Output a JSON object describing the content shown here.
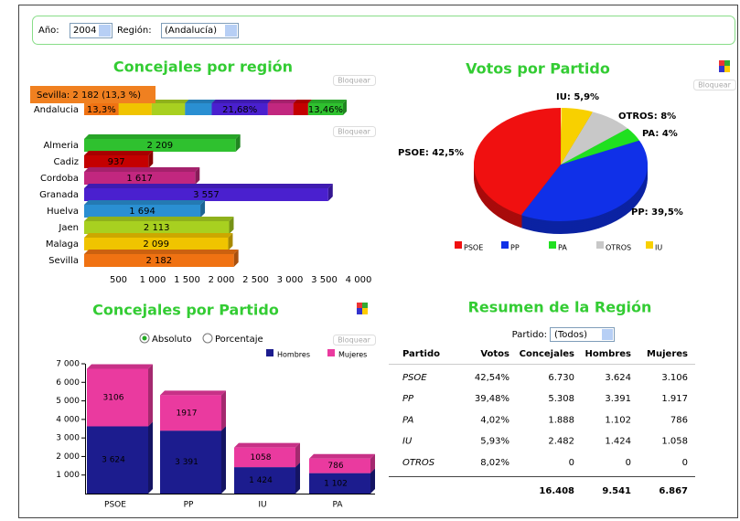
{
  "filters": {
    "year_label": "Año:",
    "year": "2004",
    "region_label": "Región:",
    "region": "(Andalucía)"
  },
  "lock_button": "Bloquear",
  "chart_data": [
    {
      "type": "hbar",
      "title": "Concejales por región",
      "categories": [
        "Almeria",
        "Cadiz",
        "Cordoba",
        "Granada",
        "Huelva",
        "Jaen",
        "Malaga",
        "Sevilla"
      ],
      "values": [
        2209,
        937,
        1617,
        3557,
        1694,
        2113,
        2099,
        2182
      ],
      "value_labels": [
        "2 209",
        "937",
        "1 617",
        "3 557",
        "1 694",
        "2 113",
        "2 099",
        "2 182"
      ],
      "colors": [
        "#2fc12f",
        "#c40000",
        "#c2277f",
        "#4a20cf",
        "#2a8fd2",
        "#a8d020",
        "#f0c400",
        "#f07212"
      ],
      "xlim": [
        0,
        4000
      ],
      "xticks": [
        500,
        {
          "value": 1000,
          "label": "1 000"
        },
        {
          "value": 1500,
          "label": "1 500"
        },
        {
          "value": 2000,
          "label": "2 000"
        },
        {
          "value": 2500,
          "label": "2 500"
        },
        {
          "value": 3000,
          "label": "3 000"
        },
        {
          "value": 3500,
          "label": "3 500"
        },
        {
          "value": 4000,
          "label": "4 000"
        }
      ],
      "summary": {
        "category": "Andalucia",
        "values": [
          13.3,
          12.79,
          12.88,
          10.32,
          21.68,
          9.85,
          5.71,
          13.46
        ],
        "value_labels": [
          "13,3%",
          null,
          null,
          null,
          "21,68%",
          null,
          null,
          "13,46%"
        ],
        "colors": [
          "#f07212",
          "#f0c400",
          "#a8d020",
          "#2a8fd2",
          "#4a20cf",
          "#c2277f",
          "#c40000",
          "#2fc12f"
        ],
        "tooltip": "Sevilla: 2 182 (13,3 %)"
      }
    },
    {
      "type": "pie",
      "title": "Votos por Partido",
      "categories": [
        "PSOE",
        "PP",
        "PA",
        "OTROS",
        "IU"
      ],
      "values": [
        42.5,
        39.5,
        4,
        8,
        5.9
      ],
      "value_labels": [
        "PSOE: 42,5%",
        "PP: 39,5%",
        "PA: 4%",
        "OTROS: 8%",
        "IU: 5,9%"
      ],
      "colors": [
        "#f01010",
        "#1030e8",
        "#20e020",
        "#c8c8c8",
        "#f8d000"
      ],
      "legend": "bottom"
    },
    {
      "type": "stacked_bar",
      "title": "Concejales por Partido",
      "options": [
        "Absoluto",
        "Porcentaje"
      ],
      "selected": "Absoluto",
      "categories": [
        "PSOE",
        "PP",
        "IU",
        "PA"
      ],
      "series": [
        {
          "name": "Hombres",
          "color": "#1c1c8e",
          "values": [
            3624,
            3391,
            1424,
            1102
          ],
          "value_labels": [
            "3 624",
            "3 391",
            "1 424",
            "1 102"
          ]
        },
        {
          "name": "Mujeres",
          "color": "#ea3a9f",
          "values": [
            3106,
            1917,
            1058,
            786
          ]
        }
      ],
      "ylim": [
        0,
        7000
      ],
      "yticks": [
        {
          "value": 1000,
          "label": "1 000"
        },
        {
          "value": 2000,
          "label": "2 000"
        },
        {
          "value": 3000,
          "label": "3 000"
        },
        {
          "value": 4000,
          "label": "4 000"
        },
        {
          "value": 5000,
          "label": "5 000"
        },
        {
          "value": 6000,
          "label": "6 000"
        },
        {
          "value": 7000,
          "label": "7 000"
        }
      ],
      "legend": "top-right"
    }
  ],
  "table": {
    "title": "Resumen de la Región",
    "filter_label": "Partido:",
    "filter": "(Todos)",
    "columns": [
      "Partido",
      "Votos",
      "Concejales",
      "Hombres",
      "Mujeres"
    ],
    "rows": [
      [
        "PSOE",
        "42,54%",
        "6.730",
        "3.624",
        "3.106"
      ],
      [
        "PP",
        "39,48%",
        "5.308",
        "3.391",
        "1.917"
      ],
      [
        "PA",
        "4,02%",
        "1.888",
        "1.102",
        "786"
      ],
      [
        "IU",
        "5,93%",
        "2.482",
        "1.424",
        "1.058"
      ],
      [
        "OTROS",
        "8,02%",
        "0",
        "0",
        "0"
      ]
    ],
    "totals": [
      "16.408",
      "9.541",
      "6.867"
    ]
  }
}
